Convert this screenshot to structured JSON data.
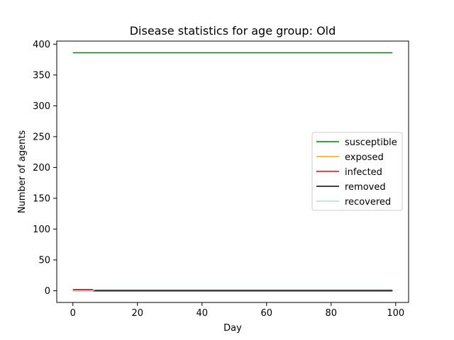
{
  "chart_data": {
    "type": "line",
    "title": "Disease statistics for age group: Old",
    "xlabel": "Day",
    "ylabel": "Number of agents",
    "xlim": [
      -5,
      104
    ],
    "ylim": [
      -19,
      405
    ],
    "xticks": [
      0,
      20,
      40,
      60,
      80,
      100
    ],
    "yticks": [
      0,
      50,
      100,
      150,
      200,
      250,
      300,
      350,
      400
    ],
    "grid": false,
    "legend_position": "center-right",
    "series": [
      {
        "name": "susceptible",
        "color": "#008000",
        "points": [
          [
            0,
            386
          ],
          [
            99,
            386
          ]
        ]
      },
      {
        "name": "exposed",
        "color": "#ffa500",
        "points": [
          [
            0,
            0
          ],
          [
            99,
            0
          ]
        ]
      },
      {
        "name": "infected",
        "color": "#ff0000",
        "points": [
          [
            0,
            2
          ],
          [
            6,
            2
          ],
          [
            7,
            0
          ],
          [
            99,
            0
          ]
        ]
      },
      {
        "name": "removed",
        "color": "#000000",
        "points": [
          [
            0,
            0
          ],
          [
            99,
            0
          ]
        ]
      },
      {
        "name": "recovered",
        "color": "#add8e6",
        "points": [
          [
            0,
            0
          ],
          [
            6,
            0
          ],
          [
            7,
            2
          ],
          [
            99,
            2
          ]
        ]
      }
    ]
  }
}
